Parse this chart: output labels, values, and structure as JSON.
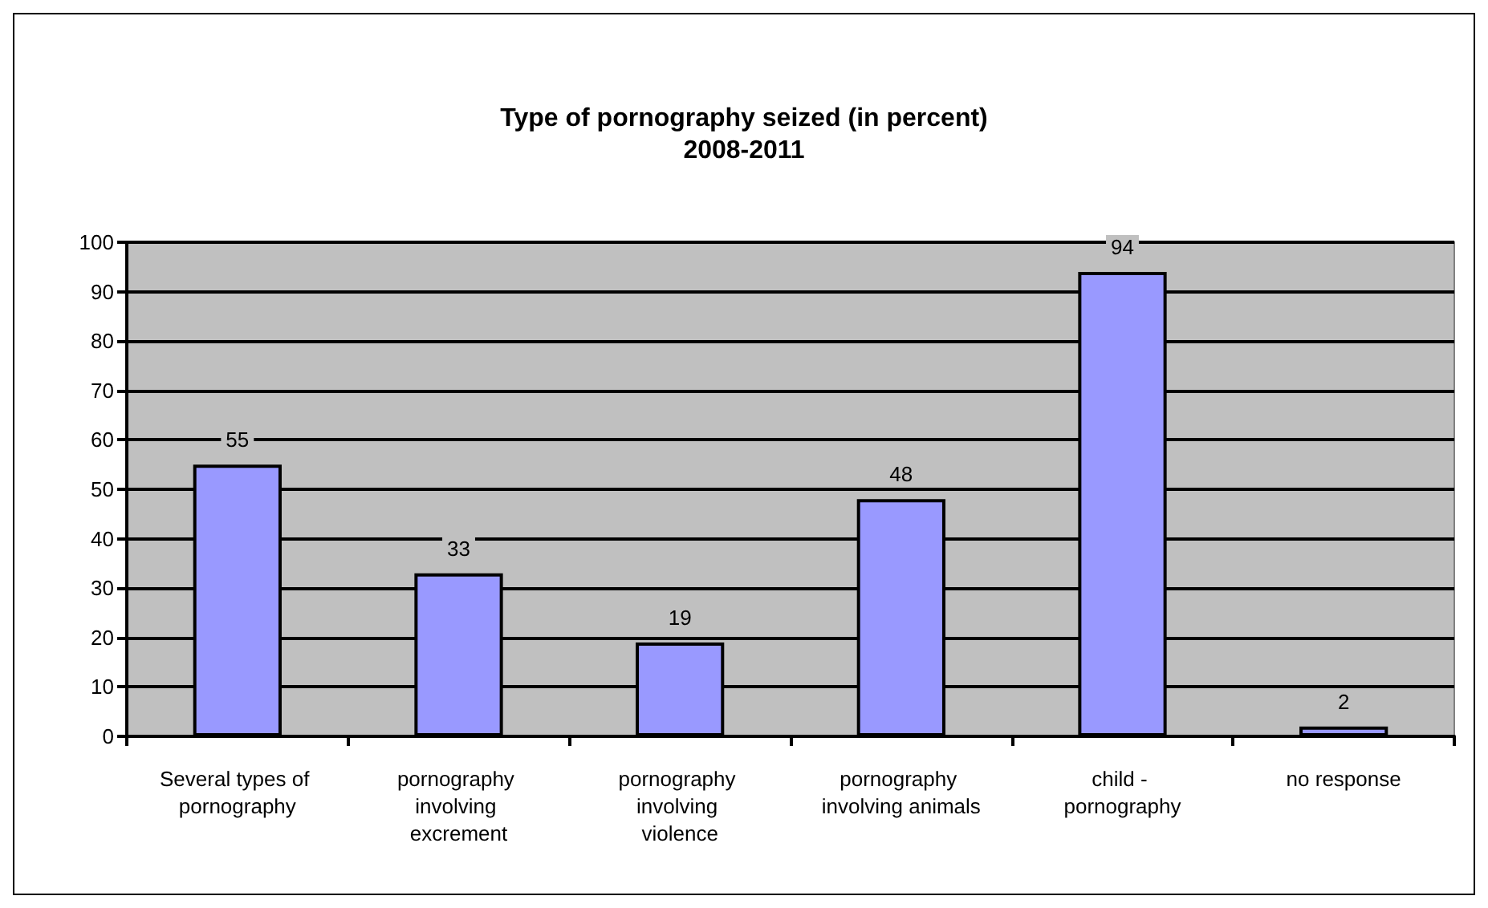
{
  "chart_data": {
    "type": "bar",
    "title": "Type of pornography seized (in percent)\n2008-2011",
    "categories": [
      "Several types of pornography",
      "pornography involving excrement",
      "pornography involving violence",
      "pornography involving animals",
      "child - pornography",
      "no response"
    ],
    "values": [
      55,
      33,
      19,
      48,
      94,
      2
    ],
    "color": "#9999ff",
    "data_labels": true,
    "ylim": [
      0,
      100
    ],
    "yticks": [
      0,
      10,
      20,
      30,
      40,
      50,
      60,
      70,
      80,
      90,
      100
    ],
    "grid": "y"
  }
}
